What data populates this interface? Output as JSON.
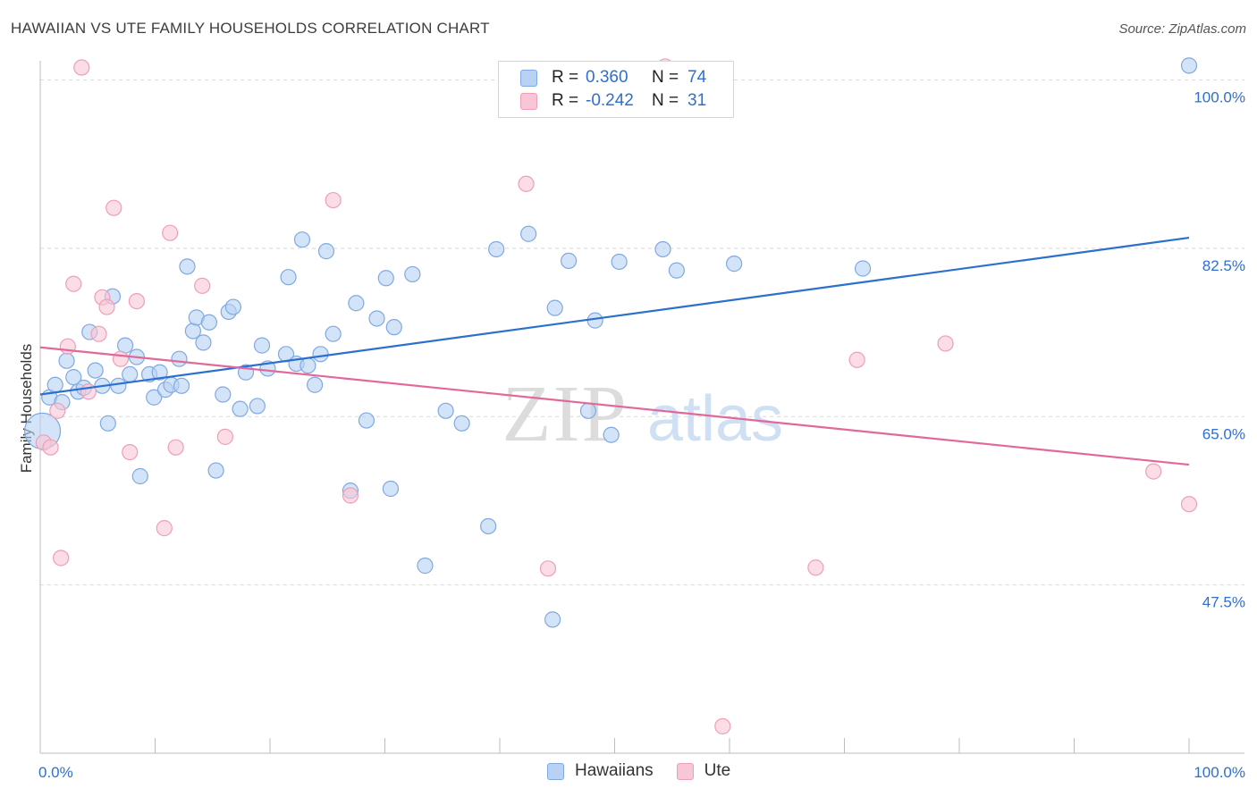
{
  "title": "HAWAIIAN VS UTE FAMILY HOUSEHOLDS CORRELATION CHART",
  "source": "Source: ZipAtlas.com",
  "watermark": {
    "zip": "ZIP",
    "atlas": "atlas"
  },
  "legend_top": [
    {
      "r_label": "R =",
      "r_value": "0.360",
      "n_label": "N =",
      "n_value": "74"
    },
    {
      "r_label": "R =",
      "r_value": "-0.242",
      "n_label": "N =",
      "n_value": "31"
    }
  ],
  "legend_bottom": {
    "hawaiians": "Hawaiians",
    "ute": "Ute"
  },
  "colors": {
    "hawaiians_fill": "#b7d2f3",
    "hawaiians_stroke": "#7fa9e0",
    "hawaiians_line": "#2b6fcf",
    "ute_fill": "#f8c6d5",
    "ute_stroke": "#ee9fb8",
    "ute_line": "#e2689a",
    "tick_label": "#2f6fd0",
    "grid": "#d9d9d9"
  },
  "chart_data": {
    "type": "scatter",
    "title": "HAWAIIAN VS UTE FAMILY HOUSEHOLDS CORRELATION CHART",
    "xlabel": "",
    "ylabel": "Family Households",
    "xlim": [
      0,
      100
    ],
    "ylim": [
      30,
      102
    ],
    "x_tick_labels": [
      "0.0%",
      "100.0%"
    ],
    "y_ticks": [
      {
        "value": 100.0,
        "label": "100.0%"
      },
      {
        "value": 82.5,
        "label": "82.5%"
      },
      {
        "value": 65.0,
        "label": "65.0%"
      },
      {
        "value": 47.5,
        "label": "47.5%"
      }
    ],
    "series": [
      {
        "name": "Hawaiians",
        "r": 0.36,
        "n": 74,
        "trend": {
          "x": [
            0,
            100
          ],
          "y": [
            67.3,
            83.6
          ]
        },
        "points": [
          {
            "x": 0.2,
            "y": 63.5,
            "big": true
          },
          {
            "x": 0.8,
            "y": 67.0
          },
          {
            "x": 1.3,
            "y": 68.3
          },
          {
            "x": 1.9,
            "y": 66.5
          },
          {
            "x": 2.3,
            "y": 70.8
          },
          {
            "x": 2.9,
            "y": 69.1
          },
          {
            "x": 3.3,
            "y": 67.6
          },
          {
            "x": 3.8,
            "y": 68.0
          },
          {
            "x": 4.3,
            "y": 73.8
          },
          {
            "x": 4.8,
            "y": 69.8
          },
          {
            "x": 5.4,
            "y": 68.2
          },
          {
            "x": 5.9,
            "y": 64.3
          },
          {
            "x": 6.3,
            "y": 77.5
          },
          {
            "x": 6.8,
            "y": 68.2
          },
          {
            "x": 7.4,
            "y": 72.4
          },
          {
            "x": 7.8,
            "y": 69.4
          },
          {
            "x": 8.4,
            "y": 71.2
          },
          {
            "x": 8.7,
            "y": 58.8
          },
          {
            "x": 9.5,
            "y": 69.4
          },
          {
            "x": 9.9,
            "y": 67.0
          },
          {
            "x": 10.4,
            "y": 69.6
          },
          {
            "x": 10.9,
            "y": 67.8
          },
          {
            "x": 11.4,
            "y": 68.3
          },
          {
            "x": 12.1,
            "y": 71.0
          },
          {
            "x": 12.3,
            "y": 68.2
          },
          {
            "x": 12.8,
            "y": 80.6
          },
          {
            "x": 13.3,
            "y": 73.9
          },
          {
            "x": 13.6,
            "y": 75.3
          },
          {
            "x": 14.2,
            "y": 72.7
          },
          {
            "x": 14.7,
            "y": 74.8
          },
          {
            "x": 15.3,
            "y": 59.4
          },
          {
            "x": 15.9,
            "y": 67.3
          },
          {
            "x": 16.4,
            "y": 75.9
          },
          {
            "x": 16.8,
            "y": 76.4
          },
          {
            "x": 17.4,
            "y": 65.8
          },
          {
            "x": 17.9,
            "y": 69.6
          },
          {
            "x": 18.9,
            "y": 66.1
          },
          {
            "x": 19.3,
            "y": 72.4
          },
          {
            "x": 19.8,
            "y": 70.0
          },
          {
            "x": 21.4,
            "y": 71.5
          },
          {
            "x": 21.6,
            "y": 79.5
          },
          {
            "x": 22.3,
            "y": 70.5
          },
          {
            "x": 22.8,
            "y": 83.4
          },
          {
            "x": 23.3,
            "y": 70.3
          },
          {
            "x": 23.9,
            "y": 68.3
          },
          {
            "x": 24.4,
            "y": 71.5
          },
          {
            "x": 24.9,
            "y": 82.2
          },
          {
            "x": 25.5,
            "y": 73.6
          },
          {
            "x": 27.0,
            "y": 57.3
          },
          {
            "x": 27.5,
            "y": 76.8
          },
          {
            "x": 28.4,
            "y": 64.6
          },
          {
            "x": 29.3,
            "y": 75.2
          },
          {
            "x": 30.1,
            "y": 79.4
          },
          {
            "x": 30.5,
            "y": 57.5
          },
          {
            "x": 30.8,
            "y": 74.3
          },
          {
            "x": 32.4,
            "y": 79.8
          },
          {
            "x": 33.5,
            "y": 49.5
          },
          {
            "x": 35.3,
            "y": 65.6
          },
          {
            "x": 36.7,
            "y": 64.3
          },
          {
            "x": 39.0,
            "y": 53.6
          },
          {
            "x": 39.7,
            "y": 82.4
          },
          {
            "x": 42.5,
            "y": 84.0
          },
          {
            "x": 44.6,
            "y": 43.9
          },
          {
            "x": 44.8,
            "y": 76.3
          },
          {
            "x": 46.0,
            "y": 81.2
          },
          {
            "x": 47.7,
            "y": 65.6
          },
          {
            "x": 48.3,
            "y": 75.0
          },
          {
            "x": 49.7,
            "y": 63.1
          },
          {
            "x": 50.4,
            "y": 81.1
          },
          {
            "x": 54.2,
            "y": 82.4
          },
          {
            "x": 55.4,
            "y": 80.2
          },
          {
            "x": 60.4,
            "y": 80.9
          },
          {
            "x": 71.6,
            "y": 80.4
          },
          {
            "x": 100.0,
            "y": 101.5
          }
        ]
      },
      {
        "name": "Ute",
        "r": -0.242,
        "n": 31,
        "trend": {
          "x": [
            0,
            100
          ],
          "y": [
            72.2,
            60.0
          ]
        },
        "points": [
          {
            "x": 0.3,
            "y": 62.3
          },
          {
            "x": 0.9,
            "y": 61.8
          },
          {
            "x": 1.5,
            "y": 65.6
          },
          {
            "x": 1.8,
            "y": 50.3
          },
          {
            "x": 2.4,
            "y": 72.3
          },
          {
            "x": 2.9,
            "y": 78.8
          },
          {
            "x": 3.6,
            "y": 101.3
          },
          {
            "x": 4.2,
            "y": 67.6
          },
          {
            "x": 5.1,
            "y": 73.6
          },
          {
            "x": 5.4,
            "y": 77.4
          },
          {
            "x": 5.8,
            "y": 76.4
          },
          {
            "x": 6.4,
            "y": 86.7
          },
          {
            "x": 7.0,
            "y": 71.0
          },
          {
            "x": 7.8,
            "y": 61.3
          },
          {
            "x": 8.4,
            "y": 77.0
          },
          {
            "x": 10.8,
            "y": 53.4
          },
          {
            "x": 11.3,
            "y": 84.1
          },
          {
            "x": 11.8,
            "y": 61.8
          },
          {
            "x": 14.1,
            "y": 78.6
          },
          {
            "x": 16.1,
            "y": 62.9
          },
          {
            "x": 25.5,
            "y": 87.5
          },
          {
            "x": 27.0,
            "y": 56.8
          },
          {
            "x": 42.3,
            "y": 89.2
          },
          {
            "x": 44.2,
            "y": 49.2
          },
          {
            "x": 54.4,
            "y": 101.4
          },
          {
            "x": 59.4,
            "y": 32.8
          },
          {
            "x": 67.5,
            "y": 49.3
          },
          {
            "x": 71.1,
            "y": 70.9
          },
          {
            "x": 78.8,
            "y": 72.6
          },
          {
            "x": 96.9,
            "y": 59.3
          },
          {
            "x": 100.0,
            "y": 55.9
          }
        ]
      }
    ],
    "grid": true,
    "legend_position": "top-center"
  }
}
